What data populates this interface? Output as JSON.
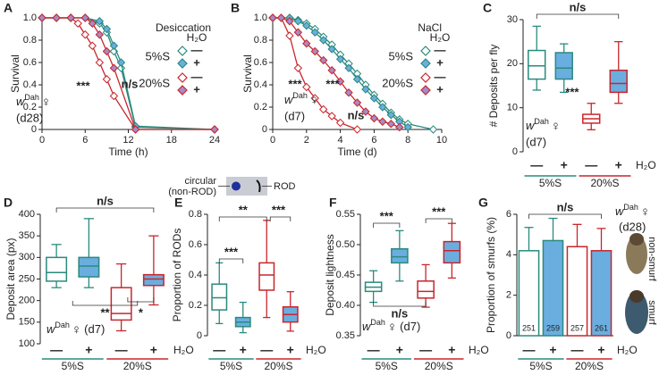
{
  "chart_data": [
    {
      "panel": "A",
      "type": "line",
      "title": "Desiccation",
      "xlabel": "Time (h)",
      "ylabel": "Survival",
      "xlim": [
        0,
        24
      ],
      "xticks": [
        0,
        6,
        12,
        18,
        24
      ],
      "ylim": [
        0,
        1
      ],
      "yticks": [
        0,
        0.2,
        0.4,
        0.6,
        0.8,
        {
          "value": 1,
          "label": "1.0"
        }
      ],
      "legend_title": "H₂O",
      "groups": [
        {
          "label": "5%S",
          "color": "#2a8a7e"
        },
        {
          "label": "20%S",
          "color": "#c8262c"
        }
      ],
      "series": [
        {
          "name": "—",
          "color": "#2a8a7e",
          "marker_fill": "#ffffff",
          "x": [
            0,
            2,
            4,
            6,
            8,
            9,
            10,
            11,
            13,
            24
          ],
          "values": [
            1,
            1,
            1,
            1,
            0.95,
            0.87,
            0.7,
            0.55,
            0.02,
            0
          ]
        },
        {
          "name": "+",
          "color": "#2a8a7e",
          "marker_fill": "#6aaee0",
          "x": [
            0,
            2,
            4,
            6,
            8,
            9,
            10,
            11,
            13,
            24
          ],
          "values": [
            1,
            1,
            1,
            1,
            0.97,
            0.9,
            0.75,
            0.6,
            0.03,
            0
          ]
        },
        {
          "name": "—",
          "color": "#c8262c",
          "marker_fill": "#ffffff",
          "x": [
            0,
            2,
            4,
            5,
            6,
            7,
            8,
            9,
            10,
            13,
            24
          ],
          "values": [
            1,
            1,
            1,
            0.95,
            0.85,
            0.75,
            0.6,
            0.45,
            0.3,
            0,
            0
          ]
        },
        {
          "name": "+",
          "color": "#c8262c",
          "marker_fill": "#a68bc9",
          "x": [
            0,
            2,
            4,
            6,
            7,
            8,
            9,
            10,
            13,
            24
          ],
          "values": [
            1,
            1,
            1,
            1,
            0.95,
            0.85,
            0.7,
            0.55,
            0,
            0
          ]
        }
      ],
      "annotations": [
        {
          "text": "***",
          "color": "#c8262c"
        },
        {
          "text": "n/s",
          "color": "#222222"
        }
      ],
      "genotype": {
        "symbol": "w",
        "superscript": "Dah",
        "sex": "♀",
        "age": "(d28)"
      }
    },
    {
      "panel": "B",
      "type": "line",
      "title": "NaCl",
      "xlabel": "Time (d)",
      "ylabel": "Survival",
      "xlim": [
        0,
        10
      ],
      "xticks": [
        0,
        2,
        4,
        6,
        8,
        10
      ],
      "ylim": [
        0,
        1
      ],
      "yticks": [
        0,
        0.2,
        0.4,
        0.6,
        0.8,
        {
          "value": 1,
          "label": "1.0"
        }
      ],
      "legend_title": "H₂O",
      "groups": [
        {
          "label": "5%S",
          "color": "#2a8a7e"
        },
        {
          "label": "20%S",
          "color": "#c8262c"
        }
      ],
      "series": [
        {
          "name": "—",
          "color": "#2a8a7e",
          "marker_fill": "#ffffff",
          "x": [
            0,
            1,
            1.5,
            2,
            2.5,
            3,
            3.5,
            4,
            4.5,
            5,
            5.5,
            6,
            6.5,
            7,
            7.5,
            8,
            9.5
          ],
          "values": [
            1,
            1,
            0.98,
            0.95,
            0.9,
            0.83,
            0.76,
            0.67,
            0.59,
            0.5,
            0.4,
            0.31,
            0.23,
            0.15,
            0.09,
            0.05,
            0
          ]
        },
        {
          "name": "+",
          "color": "#2a8a7e",
          "marker_fill": "#6aaee0",
          "x": [
            0,
            1,
            1.5,
            2,
            2.5,
            3,
            3.5,
            4,
            4.5,
            5,
            5.5,
            6,
            6.5,
            7,
            7.5,
            8
          ],
          "values": [
            1,
            1,
            0.97,
            0.93,
            0.87,
            0.8,
            0.72,
            0.63,
            0.55,
            0.45,
            0.36,
            0.28,
            0.2,
            0.13,
            0.07,
            0.02
          ]
        },
        {
          "name": "—",
          "color": "#c8262c",
          "marker_fill": "#ffffff",
          "x": [
            0,
            0.5,
            1,
            1.5,
            2,
            2.5,
            3,
            3.5,
            4,
            5
          ],
          "values": [
            1,
            1,
            0.84,
            0.55,
            0.38,
            0.28,
            0.18,
            0.12,
            0.06,
            0
          ]
        },
        {
          "name": "+",
          "color": "#c8262c",
          "marker_fill": "#a68bc9",
          "x": [
            0,
            0.5,
            1,
            1.5,
            2,
            2.5,
            3,
            3.5,
            4,
            4.5,
            5,
            5.5,
            6,
            6.5,
            7,
            7.5
          ],
          "values": [
            1,
            1,
            0.97,
            0.87,
            0.77,
            0.7,
            0.62,
            0.53,
            0.43,
            0.33,
            0.24,
            0.16,
            0.1,
            0.07,
            0.05,
            0.02
          ]
        }
      ],
      "annotations": [
        {
          "text": "***",
          "color": "#c8262c"
        },
        {
          "text": "***",
          "color": "#c8262c"
        },
        {
          "text": "n/s",
          "color": "#2a8a7e"
        }
      ],
      "genotype": {
        "symbol": "w",
        "superscript": "Dah",
        "sex": "♀",
        "age": "(d7)"
      }
    },
    {
      "panel": "C",
      "type": "box",
      "ylabel": "# Deposits per fly",
      "ylim": [
        0,
        30
      ],
      "yticks": [
        0,
        10,
        20,
        30
      ],
      "categories": [
        "—",
        "+",
        "—",
        "+"
      ],
      "water_label": "H₂O",
      "groups": [
        {
          "label": "5%S",
          "color": "#2a8a7e"
        },
        {
          "label": "20%S",
          "color": "#c8262c"
        }
      ],
      "edge_colors": [
        "#2a8a7e",
        "#2a8a7e",
        "#c8262c",
        "#c8262c"
      ],
      "face_colors": [
        "#ffffff",
        "#6aaee0",
        "#ffffff",
        "#6aaee0"
      ],
      "boxes": [
        {
          "whislo": 14,
          "q1": 16.5,
          "med": 19.5,
          "q3": 23,
          "whishi": 28.5
        },
        {
          "whislo": 13.5,
          "q1": 16.5,
          "med": 19,
          "q3": 22.5,
          "whishi": 24.5
        },
        {
          "whislo": 5,
          "q1": 6.5,
          "med": 7.5,
          "q3": 8.5,
          "whishi": 11
        },
        {
          "whislo": 11,
          "q1": 13.5,
          "med": 15.5,
          "q3": 18.5,
          "whishi": 25
        }
      ],
      "annotations": [
        {
          "text": "n/s",
          "color": "#222222"
        },
        {
          "text": "***",
          "color": "#222222"
        }
      ],
      "genotype": {
        "symbol": "w",
        "superscript": "Dah",
        "sex": "♀",
        "age": "(d7)"
      }
    },
    {
      "panel": "D",
      "type": "box",
      "ylabel": "Deposit area (px)",
      "ylim": [
        100,
        400
      ],
      "yticks": [
        100,
        150,
        200,
        250,
        300,
        350,
        400
      ],
      "categories": [
        "—",
        "+",
        "—",
        "+"
      ],
      "water_label": "H₂O",
      "groups": [
        {
          "label": "5%S",
          "color": "#2a8a7e"
        },
        {
          "label": "20%S",
          "color": "#c8262c"
        }
      ],
      "edge_colors": [
        "#2a8a7e",
        "#2a8a7e",
        "#c8262c",
        "#c8262c"
      ],
      "face_colors": [
        "#ffffff",
        "#6aaee0",
        "#ffffff",
        "#6aaee0"
      ],
      "boxes": [
        {
          "whislo": 230,
          "q1": 245,
          "med": 265,
          "q3": 300,
          "whishi": 330
        },
        {
          "whislo": 230,
          "q1": 255,
          "med": 280,
          "q3": 300,
          "whishi": 390
        },
        {
          "whislo": 130,
          "q1": 155,
          "med": 170,
          "q3": 230,
          "whishi": 285
        },
        {
          "whislo": 190,
          "q1": 235,
          "med": 250,
          "q3": 260,
          "whishi": 350
        }
      ],
      "annotations": [
        {
          "text": "n/s",
          "color": "#222222"
        },
        {
          "text": "**",
          "color": "#222222"
        },
        {
          "text": "*",
          "color": "#222222"
        }
      ],
      "genotype": {
        "symbol": "w",
        "superscript": "Dah",
        "sex": "♀",
        "age": "(d7)"
      }
    },
    {
      "panel": "E",
      "type": "box",
      "ylabel": "Proportion of RODs",
      "ylim": [
        0,
        0.8
      ],
      "yticks": [
        0,
        0.2,
        0.4,
        0.6,
        0.8
      ],
      "categories": [
        "—",
        "+",
        "—",
        "+"
      ],
      "water_label": "H₂O",
      "groups": [
        {
          "label": "5%S",
          "color": "#2a8a7e"
        },
        {
          "label": "20%S",
          "color": "#c8262c"
        }
      ],
      "edge_colors": [
        "#2a8a7e",
        "#2a8a7e",
        "#c8262c",
        "#c8262c"
      ],
      "face_colors": [
        "#ffffff",
        "#6aaee0",
        "#ffffff",
        "#6aaee0"
      ],
      "boxes": [
        {
          "whislo": 0.08,
          "q1": 0.17,
          "med": 0.25,
          "q3": 0.34,
          "whishi": 0.48
        },
        {
          "whislo": 0.02,
          "q1": 0.06,
          "med": 0.09,
          "q3": 0.12,
          "whishi": 0.22
        },
        {
          "whislo": 0.12,
          "q1": 0.3,
          "med": 0.4,
          "q3": 0.48,
          "whishi": 0.76
        },
        {
          "whislo": 0.03,
          "q1": 0.09,
          "med": 0.14,
          "q3": 0.19,
          "whishi": 0.29
        }
      ],
      "annotations": [
        {
          "text": "**",
          "color": "#222222"
        },
        {
          "text": "***",
          "color": "#222222"
        },
        {
          "text": "***",
          "color": "#222222"
        }
      ],
      "inset": {
        "left_label": [
          "circular",
          "(non-ROD)"
        ],
        "right_label": "ROD"
      }
    },
    {
      "panel": "F",
      "type": "box",
      "ylabel": "Deposit lightness",
      "ylim": [
        0.35,
        0.55
      ],
      "yticks": [
        0.35,
        {
          "value": 0.4,
          "label": "0.40"
        },
        0.45,
        {
          "value": 0.5,
          "label": "0.50"
        },
        0.55
      ],
      "categories": [
        "—",
        "+",
        "—",
        "+"
      ],
      "water_label": "H₂O",
      "groups": [
        {
          "label": "5%S",
          "color": "#2a8a7e"
        },
        {
          "label": "20%S",
          "color": "#c8262c"
        }
      ],
      "edge_colors": [
        "#2a8a7e",
        "#2a8a7e",
        "#c8262c",
        "#c8262c"
      ],
      "face_colors": [
        "#ffffff",
        "#6aaee0",
        "#ffffff",
        "#6aaee0"
      ],
      "boxes": [
        {
          "whislo": 0.405,
          "q1": 0.423,
          "med": 0.43,
          "q3": 0.438,
          "whishi": 0.457
        },
        {
          "whislo": 0.44,
          "q1": 0.47,
          "med": 0.48,
          "q3": 0.493,
          "whishi": 0.523
        },
        {
          "whislo": 0.397,
          "q1": 0.412,
          "med": 0.423,
          "q3": 0.44,
          "whishi": 0.467
        },
        {
          "whislo": 0.445,
          "q1": 0.47,
          "med": 0.49,
          "q3": 0.505,
          "whishi": 0.535
        }
      ],
      "annotations": [
        {
          "text": "***",
          "color": "#222222"
        },
        {
          "text": "***",
          "color": "#222222"
        },
        {
          "text": "n/s",
          "color": "#222222"
        }
      ],
      "genotype": {
        "symbol": "w",
        "superscript": "Dah",
        "sex": "♀",
        "age": "(d7)"
      }
    },
    {
      "panel": "G",
      "type": "bar",
      "ylabel": "Proportion of smurfs (%)",
      "ylim": [
        0,
        6
      ],
      "yticks": [
        0,
        2,
        4,
        6
      ],
      "categories": [
        "—",
        "+",
        "—",
        "+"
      ],
      "water_label": "H₂O",
      "groups": [
        {
          "label": "5%S",
          "color": "#2a8a7e"
        },
        {
          "label": "20%S",
          "color": "#c8262c"
        }
      ],
      "edge_colors": [
        "#2a8a7e",
        "#2a8a7e",
        "#c8262c",
        "#c8262c"
      ],
      "face_colors": [
        "#ffffff",
        "#6aaee0",
        "#ffffff",
        "#6aaee0"
      ],
      "values": [
        4.2,
        4.7,
        4.4,
        4.2
      ],
      "errors": [
        1.15,
        1.1,
        1.1,
        1.1
      ],
      "counts": [
        251,
        259,
        257,
        261
      ],
      "annotations": [
        {
          "text": "n/s",
          "color": "#222222"
        }
      ],
      "image_labels": [
        "non-smurf",
        "smurf"
      ],
      "genotype": {
        "symbol": "w",
        "superscript": "Dah",
        "sex": "♀",
        "age": "(d28)"
      }
    }
  ]
}
